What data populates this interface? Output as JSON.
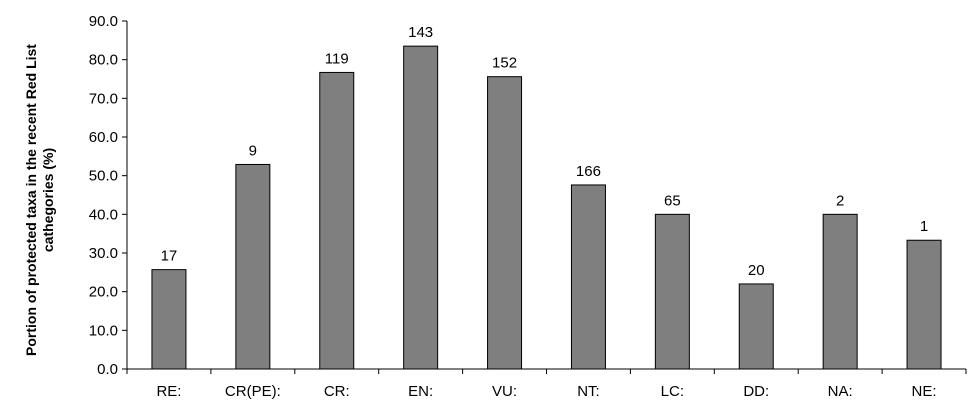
{
  "chart_data": {
    "type": "bar",
    "title": "",
    "xlabel": "",
    "ylabel_line1": "Portion of protected taxa in the recent Red List",
    "ylabel_line2": "cathegories (%)",
    "categories": [
      "RE:",
      "CR(PE):",
      "CR:",
      "EN:",
      "VU:",
      "NT:",
      "LC:",
      "DD:",
      "NA:",
      "NE:"
    ],
    "values": [
      25.7,
      52.9,
      76.7,
      83.5,
      75.6,
      47.6,
      40.0,
      22.0,
      40.0,
      33.3
    ],
    "data_labels": [
      "17",
      "9",
      "119",
      "143",
      "152",
      "166",
      "65",
      "20",
      "2",
      "1"
    ],
    "ylim": [
      0,
      90
    ],
    "yticks": [
      "0.0",
      "10.0",
      "20.0",
      "30.0",
      "40.0",
      "50.0",
      "60.0",
      "70.0",
      "80.0",
      "90.0"
    ],
    "grid": false,
    "legend": "none",
    "bar_color": "#7f7f7f"
  }
}
